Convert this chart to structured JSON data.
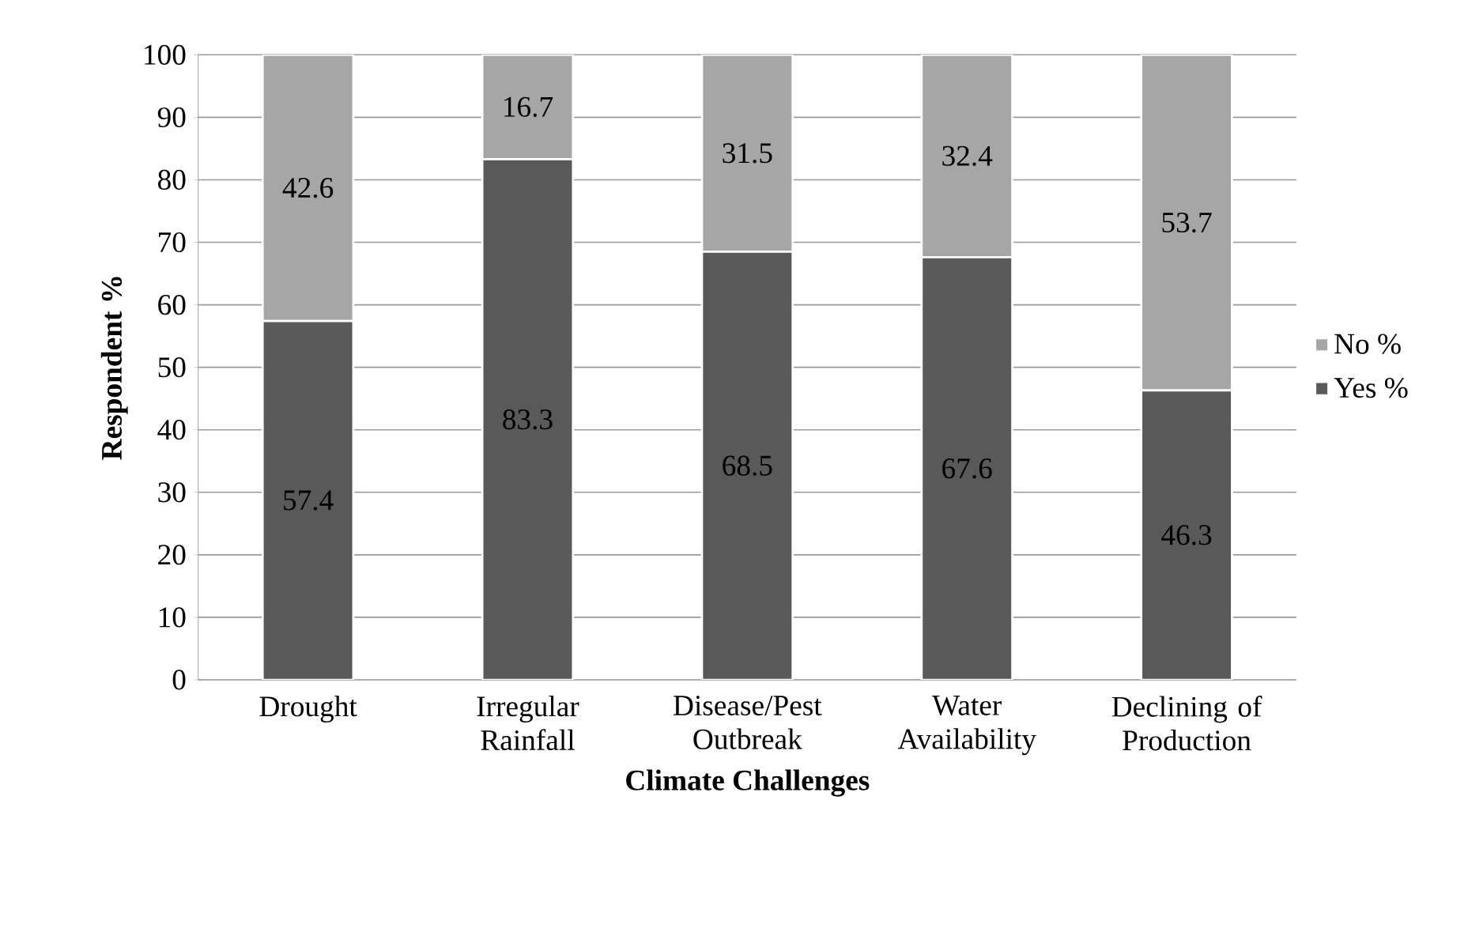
{
  "chart_data": {
    "type": "bar",
    "stacked": true,
    "xlabel": "Climate Challenges",
    "ylabel": "Respondent %",
    "categories": [
      "Drought",
      "Irregular Rainfall",
      "Disease/Pest Outbreak",
      "Water Availability",
      "Declining of Production"
    ],
    "series": [
      {
        "name": "Yes %",
        "color": "#595959",
        "values": [
          57.4,
          83.3,
          68.5,
          67.6,
          46.3
        ]
      },
      {
        "name": "No %",
        "color": "#a6a6a6",
        "values": [
          42.6,
          16.7,
          31.5,
          32.4,
          53.7
        ]
      }
    ],
    "ylim": [
      0,
      100
    ],
    "yticks": [
      0,
      10,
      20,
      30,
      40,
      50,
      60,
      70,
      80,
      90,
      100
    ],
    "grid": "y",
    "legend": "right",
    "data_labels": true
  }
}
